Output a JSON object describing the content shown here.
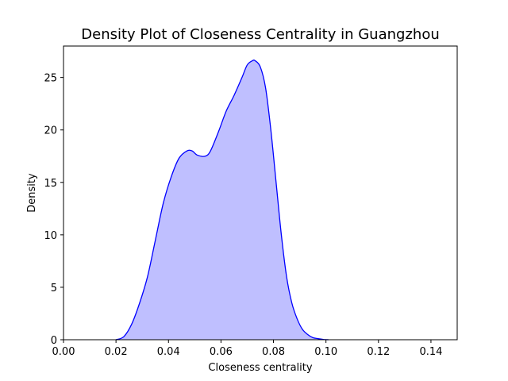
{
  "chart_data": {
    "type": "area",
    "title": "Density Plot of Closeness Centrality in Guangzhou",
    "xlabel": "Closeness centrality",
    "ylabel": "Density",
    "xlim": [
      0.0,
      0.15
    ],
    "ylim": [
      0,
      28
    ],
    "x_ticks": [
      "0.00",
      "0.02",
      "0.04",
      "0.06",
      "0.08",
      "0.10",
      "0.12",
      "0.14"
    ],
    "y_ticks": [
      "0",
      "5",
      "10",
      "15",
      "20",
      "25"
    ],
    "grid": false,
    "legend": "none",
    "colors": {
      "line": "#0000ff",
      "fill": "#bfbfff"
    },
    "series": [
      {
        "x": [
          0.02,
          0.023,
          0.026,
          0.029,
          0.032,
          0.035,
          0.038,
          0.041,
          0.044,
          0.047,
          0.049,
          0.051,
          0.054,
          0.056,
          0.059,
          0.062,
          0.065,
          0.068,
          0.07,
          0.072,
          0.073,
          0.075,
          0.077,
          0.079,
          0.081,
          0.083,
          0.085,
          0.087,
          0.089,
          0.091,
          0.093,
          0.095,
          0.097,
          0.099,
          0.101
        ],
        "y": [
          0.0,
          0.3,
          1.5,
          3.5,
          6.0,
          9.5,
          13.0,
          15.5,
          17.3,
          18.0,
          18.0,
          17.6,
          17.5,
          18.0,
          19.8,
          21.8,
          23.3,
          25.0,
          26.2,
          26.6,
          26.6,
          26.0,
          24.0,
          20.0,
          15.0,
          10.0,
          6.0,
          3.5,
          2.0,
          1.0,
          0.5,
          0.2,
          0.1,
          0.03,
          0.0
        ]
      }
    ]
  }
}
